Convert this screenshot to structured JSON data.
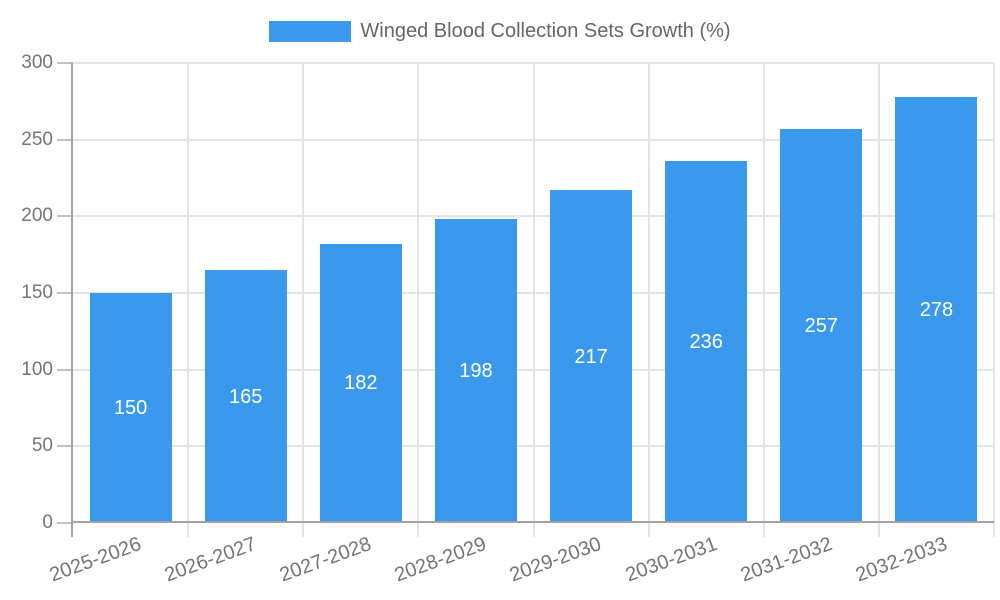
{
  "chart_data": {
    "type": "bar",
    "title": "",
    "legend": "Winged Blood Collection Sets Growth (%)",
    "legend_position": "top",
    "categories": [
      "2025-2026",
      "2026-2027",
      "2027-2028",
      "2028-2029",
      "2029-2030",
      "2030-2031",
      "2031-2032",
      "2032-2033"
    ],
    "values": [
      150,
      165,
      182,
      198,
      217,
      236,
      257,
      278
    ],
    "xlabel": "",
    "ylabel": "",
    "ylim": [
      0,
      300
    ],
    "yticks": [
      0,
      50,
      100,
      150,
      200,
      250,
      300
    ],
    "grid": true,
    "x_label_rotation_deg": -20,
    "colors": {
      "bar": "#3b99ed",
      "value_label": "#ffffff",
      "axis_text": "#757575",
      "legend_text": "#666666",
      "gridline": "#e4e4e4",
      "axis_line": "#a3a3a3",
      "tick": "#c2c2c2",
      "background": "#ffffff"
    }
  }
}
